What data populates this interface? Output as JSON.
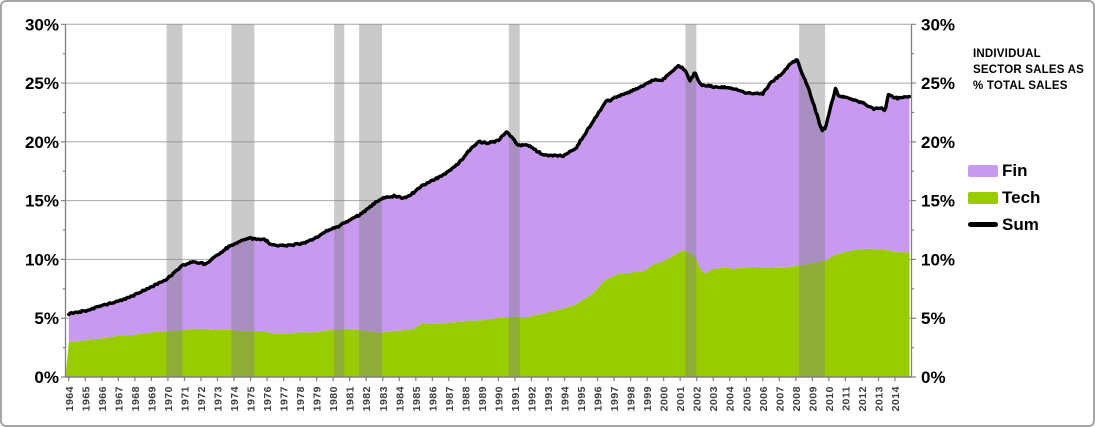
{
  "figure": {
    "annotation": {
      "line1": "INDIVIDUAL",
      "line2": "SECTOR SALES AS",
      "line3": "% TOTAL SALES"
    },
    "legend": [
      {
        "label": "Fin",
        "color": "#C79AF0",
        "type": "area"
      },
      {
        "label": "Tech",
        "color": "#99CC00",
        "type": "area"
      },
      {
        "label": "Sum",
        "color": "#000000",
        "type": "line"
      }
    ]
  },
  "chart_data": {
    "type": "area",
    "stacked": true,
    "title": "INDIVIDUAL SECTOR SALES AS % TOTAL SALES",
    "xlabel": "",
    "ylabel": "",
    "ylim": [
      0,
      30
    ],
    "y_major_step": 5,
    "y_minor_step": 2.5,
    "y_tick_labels": [
      "0%",
      "5%",
      "10%",
      "15%",
      "20%",
      "25%",
      "30%"
    ],
    "y_axis_sides": [
      "left",
      "right"
    ],
    "grid": "horizontal",
    "legend_position": "right",
    "x_tick_labels": [
      1964,
      1965,
      1966,
      1967,
      1968,
      1969,
      1970,
      1971,
      1972,
      1973,
      1974,
      1975,
      1976,
      1977,
      1978,
      1979,
      1980,
      1981,
      1982,
      1983,
      1984,
      1985,
      1986,
      1987,
      1988,
      1989,
      1990,
      1991,
      1992,
      1993,
      1994,
      1995,
      1996,
      1997,
      1998,
      1999,
      2000,
      2001,
      2002,
      2003,
      2004,
      2005,
      2006,
      2007,
      2008,
      2009,
      2010,
      2011,
      2012,
      2013,
      2014
    ],
    "x_domain": [
      1963.8,
      2015.0
    ],
    "x": [
      1964.0,
      1965.0,
      1966.0,
      1967.0,
      1968.0,
      1969.0,
      1969.9,
      1970.9,
      1971.5,
      1972.3,
      1973.0,
      1973.8,
      1974.8,
      1975.8,
      1976.4,
      1977.3,
      1978.0,
      1978.8,
      1979.7,
      1980.2,
      1980.8,
      1981.5,
      1982.1,
      1982.6,
      1983.0,
      1983.7,
      1984.3,
      1984.9,
      1985.4,
      1986.0,
      1986.8,
      1987.6,
      1988.2,
      1988.8,
      1989.4,
      1990.0,
      1990.5,
      1991.2,
      1991.7,
      1992.7,
      1993.9,
      1994.7,
      1995.7,
      1996.5,
      1997.3,
      1998.2,
      1998.8,
      1999.4,
      1999.9,
      2000.3,
      2000.9,
      2001.3,
      2001.6,
      2001.9,
      2002.2,
      2002.5,
      2003.0,
      2003.7,
      2004.3,
      2004.9,
      2005.5,
      2006.0,
      2006.5,
      2006.9,
      2007.2,
      2007.8,
      2008.1,
      2008.3,
      2008.7,
      2009.1,
      2009.4,
      2009.6,
      2009.8,
      2010.0,
      2010.4,
      2010.6,
      2010.9,
      2011.5,
      2012.1,
      2012.7,
      2013.2,
      2013.4,
      2013.6,
      2013.9,
      2014.3,
      2014.9
    ],
    "series": [
      {
        "name": "Tech",
        "color": "#99CC00",
        "values": [
          3.0,
          3.1,
          3.3,
          3.5,
          3.6,
          3.8,
          3.9,
          4.0,
          4.1,
          4.1,
          4.0,
          4.0,
          3.9,
          3.9,
          3.7,
          3.7,
          3.8,
          3.8,
          4.0,
          4.0,
          4.1,
          4.0,
          3.9,
          3.8,
          3.8,
          3.9,
          4.0,
          4.1,
          4.6,
          4.5,
          4.6,
          4.7,
          4.8,
          4.8,
          4.9,
          5.0,
          5.1,
          5.1,
          5.1,
          5.4,
          5.8,
          6.2,
          7.1,
          8.3,
          8.8,
          8.9,
          9.0,
          9.6,
          9.8,
          10.1,
          10.6,
          10.8,
          10.5,
          10.3,
          9.2,
          8.8,
          9.2,
          9.3,
          9.2,
          9.3,
          9.4,
          9.3,
          9.3,
          9.3,
          9.3,
          9.4,
          9.5,
          9.5,
          9.6,
          9.7,
          9.8,
          9.9,
          9.9,
          10.1,
          10.4,
          10.5,
          10.6,
          10.8,
          10.9,
          10.9,
          10.8,
          10.8,
          10.8,
          10.7,
          10.6,
          10.6
        ]
      },
      {
        "name": "Fin",
        "color": "#C79AF0",
        "values": [
          2.4,
          2.5,
          2.8,
          2.9,
          3.4,
          3.9,
          4.4,
          5.5,
          5.7,
          5.5,
          6.4,
          7.2,
          7.9,
          7.8,
          7.5,
          7.5,
          7.5,
          7.9,
          8.5,
          8.7,
          9.1,
          9.7,
          10.4,
          11.1,
          11.4,
          11.5,
          11.2,
          11.6,
          11.7,
          12.2,
          12.7,
          13.5,
          14.4,
          15.2,
          15.0,
          15.1,
          15.8,
          14.6,
          14.7,
          13.5,
          13.0,
          13.3,
          14.6,
          15.1,
          15.1,
          15.5,
          15.8,
          15.7,
          15.4,
          15.7,
          15.9,
          15.3,
          14.7,
          15.6,
          15.7,
          16.0,
          15.5,
          15.3,
          15.3,
          14.9,
          14.7,
          14.8,
          15.8,
          16.2,
          16.6,
          17.4,
          17.5,
          16.6,
          15.2,
          13.4,
          11.9,
          11.1,
          11.3,
          12.3,
          14.1,
          13.4,
          13.2,
          12.8,
          12.4,
          11.9,
          12.1,
          11.8,
          13.3,
          13.1,
          13.1,
          13.3
        ]
      },
      {
        "name": "Sum",
        "color": "#000000",
        "derived": "Tech + Fin",
        "values": [
          5.4,
          5.6,
          6.1,
          6.4,
          7.0,
          7.7,
          8.3,
          9.5,
          9.8,
          9.6,
          10.4,
          11.2,
          11.8,
          11.7,
          11.2,
          11.2,
          11.3,
          11.7,
          12.5,
          12.7,
          13.2,
          13.7,
          14.3,
          14.9,
          15.2,
          15.4,
          15.2,
          15.7,
          16.3,
          16.7,
          17.3,
          18.2,
          19.2,
          20.0,
          19.9,
          20.1,
          20.9,
          19.7,
          19.8,
          18.9,
          18.8,
          19.5,
          21.7,
          23.4,
          23.9,
          24.4,
          24.8,
          25.3,
          25.2,
          25.8,
          26.5,
          26.1,
          25.2,
          25.9,
          24.9,
          24.8,
          24.7,
          24.6,
          24.5,
          24.2,
          24.1,
          24.1,
          25.1,
          25.5,
          25.9,
          26.8,
          27.0,
          26.1,
          24.8,
          23.1,
          21.7,
          21.0,
          21.2,
          22.4,
          24.5,
          23.9,
          23.8,
          23.6,
          23.3,
          22.8,
          22.9,
          22.6,
          24.1,
          23.8,
          23.7,
          23.9
        ]
      }
    ],
    "recession_bands": [
      [
        1969.92,
        1970.88
      ],
      [
        1973.84,
        1975.23
      ],
      [
        1980.06,
        1980.67
      ],
      [
        1981.57,
        1982.96
      ],
      [
        1990.63,
        1991.29
      ],
      [
        2001.32,
        2001.98
      ],
      [
        2008.2,
        2009.77
      ]
    ],
    "band_color": "rgba(128,128,128,0.42)",
    "gridline_color": "#A8A8A8",
    "axis_color": "#808080"
  }
}
